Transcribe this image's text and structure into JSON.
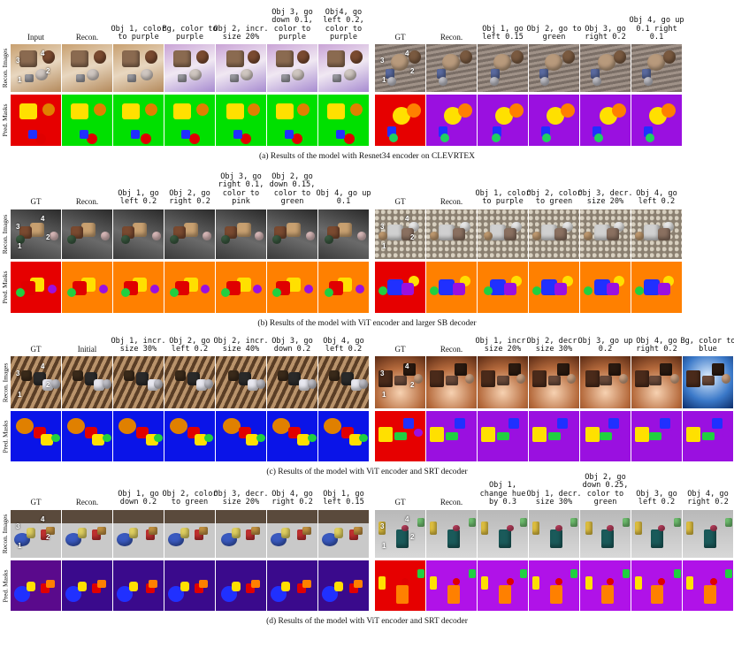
{
  "panels": [
    {
      "id": "a",
      "caption": "(a) Results of the model with Resnet34 encoder on CLEVRTEX",
      "row_labels": [
        "Recon. Images",
        "Pred. Masks"
      ],
      "left": {
        "headers": [
          "Input",
          "Recon.",
          "Obj 1, color to purple",
          "Bg, color to purple",
          "Obj 2, incr. size 20%",
          "Obj 3, go down 0.1, color to purple",
          "Obj4, go left 0.2, color to purple"
        ],
        "object_numbers": [
          "1",
          "2",
          "3",
          "4"
        ],
        "scene": "clevrtex-purple"
      },
      "right": {
        "headers": [
          "GT",
          "Recon.",
          "Obj 1, go left 0.15",
          "Obj 2, go to green",
          "Obj 3, go right 0.2",
          "Obj 4, go up 0.1 right 0.1"
        ],
        "object_numbers": [
          "1",
          "2",
          "3",
          "4"
        ],
        "scene": "clevrtex-wood"
      }
    },
    {
      "id": "b",
      "caption": "(b) Results of the model with ViT encoder and larger SB decoder",
      "row_labels": [
        "Recon. Images",
        "Pred. Masks"
      ],
      "left": {
        "headers": [
          "GT",
          "Recon.",
          "Obj 1, go left 0.2",
          "Obj 2, go right 0.2",
          "Obj 3, go right 0.1, color to pink",
          "Obj 2, go down 0.15, color to green",
          "Obj 4, go up 0.1"
        ],
        "object_numbers": [
          "1",
          "2",
          "3",
          "4"
        ],
        "scene": "dark"
      },
      "right": {
        "headers": [
          "GT",
          "Recon.",
          "Obj 1, color to purple",
          "Obj 2, color to green",
          "Obj 3, decr. size 20%",
          "Obj 4, go left 0.2"
        ],
        "object_numbers": [
          "1",
          "2",
          "3",
          "4"
        ],
        "scene": "pebbles"
      }
    },
    {
      "id": "c",
      "caption": "(c) Results of the model with ViT encoder and SRT decoder",
      "row_labels": [
        "Recon. Images",
        "Pred. Masks"
      ],
      "left": {
        "headers": [
          "GT",
          "Initial",
          "Obj 1, incr. size 30%",
          "Obj 2, go left 0.2",
          "Obj 2, incr. size 40%",
          "Obj 3, go down 0.2",
          "Obj 4, go left 0.2"
        ],
        "object_numbers": [
          "1",
          "2",
          "3",
          "4"
        ],
        "scene": "planks"
      },
      "right": {
        "headers": [
          "GT",
          "Recon.",
          "Obj 1, incr. size 20%",
          "Obj 2, decr. size 30%",
          "Obj 3, go up 0.2",
          "Obj 4, go right 0.2",
          "Bg, color to blue"
        ],
        "object_numbers": [
          "1",
          "2",
          "3",
          "4"
        ],
        "scene": "brown-blur"
      }
    },
    {
      "id": "d",
      "caption": "(d) Results of the model with ViT encoder and SRT decoder",
      "row_labels": [
        "Recon. Images",
        "Pred. Masks"
      ],
      "left": {
        "headers": [
          "GT",
          "Recon.",
          "Obj 1, go down 0.2",
          "Obj 2, color to green",
          "Obj 3, decr. size 20%",
          "Obj 4, go right 0.2",
          "Obj 1, go left 0.15"
        ],
        "object_numbers": [
          "1",
          "2",
          "3",
          "4"
        ],
        "scene": "room"
      },
      "right": {
        "headers": [
          "GT",
          "Recon.",
          "Obj 1, change hue by 0.3",
          "Obj 1, decr. size 30%",
          "Obj 2, go down 0.25, color to green",
          "Obj 3, go left 0.2",
          "Obj 4, go right 0.2"
        ],
        "object_numbers": [
          "1",
          "2",
          "3",
          "4"
        ],
        "scene": "gray-room"
      }
    }
  ]
}
